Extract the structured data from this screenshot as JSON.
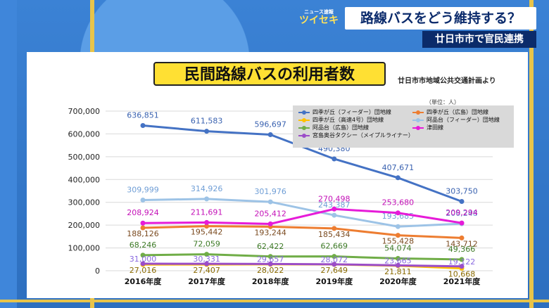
{
  "show": {
    "logo_top": "ニュース速報",
    "logo_main": "ツイセキ"
  },
  "headline": "路線バスをどう維持する？",
  "subhead": "廿日市市で官民連携",
  "source": "廿日市市地域公共交通計画より",
  "colors": {
    "shikigaoka_feeder": "#4472c4",
    "shikigaoka_hiroden": "#ed7d31",
    "shikigaoka_kosoku4": "#ffc000",
    "ajinadai_feeder": "#9dc3e6",
    "ajinadai_hiroden": "#70ad47",
    "tsuda": "#e61bd8",
    "miyajima_taxi": "#9b4dc8"
  },
  "chart_data": {
    "type": "line",
    "title": "民間路線バスの利用者数",
    "unit": "（単位：人）",
    "categories": [
      "2016年度",
      "2017年度",
      "2018年度",
      "2019年度",
      "2020年度",
      "2021年度"
    ],
    "ylim": [
      0,
      700000
    ],
    "yticks": [
      0,
      100000,
      200000,
      300000,
      400000,
      500000,
      600000,
      700000
    ],
    "ytick_labels": [
      "0",
      "100,000",
      "200,000",
      "300,000",
      "400,000",
      "500,000",
      "600,000",
      "700,000"
    ],
    "grid": true,
    "legend_position": "top-right",
    "series": [
      {
        "name": "四季が丘（フィーダー）団地線",
        "color_key": "shikigaoka_feeder",
        "values": [
          636851,
          611583,
          596697,
          490380,
          407671,
          303750
        ],
        "labels": [
          "636,851",
          "611,583",
          "596,697",
          "490,380",
          "407,671",
          "303,750"
        ]
      },
      {
        "name": "四季が丘（広島）団地線",
        "color_key": "shikigaoka_hiroden",
        "values": [
          188126,
          195442,
          193244,
          185434,
          155428,
          143712
        ],
        "labels": [
          "188,126",
          "195,442",
          "193,244",
          "185,434",
          "155,428",
          "143,712"
        ]
      },
      {
        "name": "四季が丘（高速4号）団地線",
        "color_key": "shikigaoka_kosoku4",
        "values": [
          27016,
          27407,
          28022,
          27649,
          21811,
          10668
        ],
        "labels": [
          "27,016",
          "27,407",
          "28,022",
          "27,649",
          "21,811",
          "10,668"
        ]
      },
      {
        "name": "阿品台（フィーダー）団地線",
        "color_key": "ajinadai_feeder",
        "values": [
          309999,
          314926,
          301976,
          243387,
          193685,
          206248
        ],
        "labels": [
          "309,999",
          "314,926",
          "301,976",
          "243,387",
          "193,685",
          "206,248"
        ]
      },
      {
        "name": "阿品台（広島）団地線",
        "color_key": "ajinadai_hiroden",
        "values": [
          68246,
          72059,
          62422,
          62669,
          54074,
          49366
        ],
        "labels": [
          "68,246",
          "72,059",
          "62,422",
          "62,669",
          "54,074",
          "49,366"
        ]
      },
      {
        "name": "津田線",
        "color_key": "tsuda",
        "values": [
          208924,
          211691,
          205412,
          270498,
          253680,
          209294
        ],
        "labels": [
          "208,924",
          "211,691",
          "205,412",
          "270,498",
          "253,680",
          "209,294"
        ]
      },
      {
        "name": "宮島奥谷タクシー（メイプルライナー）",
        "color_key": "miyajima_taxi",
        "values": [
          31000,
          30331,
          29657,
          28072,
          23665,
          19122
        ],
        "labels": [
          "31,000",
          "30,331",
          "29,657",
          "28,072",
          "23,665",
          "19,122"
        ]
      }
    ]
  }
}
